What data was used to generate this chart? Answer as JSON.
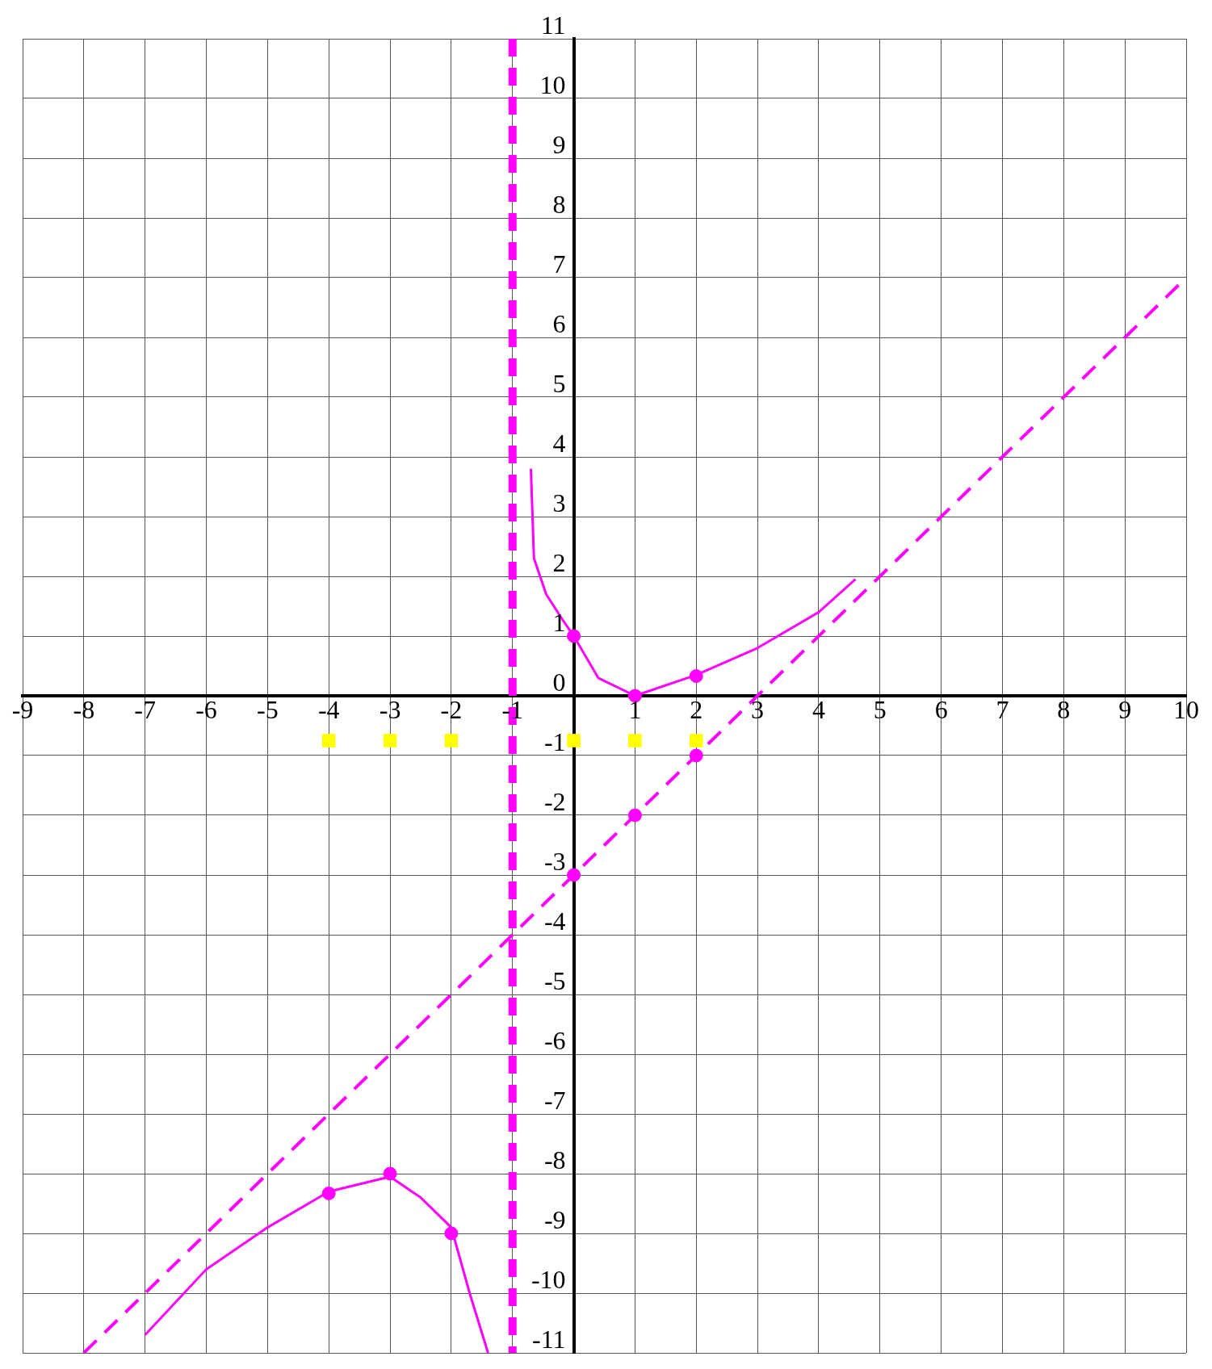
{
  "chart_data": {
    "type": "line",
    "xlim": [
      -9,
      10
    ],
    "ylim": [
      -11,
      11
    ],
    "xticks": [
      -9,
      -8,
      -7,
      -6,
      -5,
      -4,
      -3,
      -2,
      -1,
      {
        "value": 0,
        "label": null
      },
      1,
      2,
      3,
      4,
      5,
      6,
      7,
      8,
      9,
      10
    ],
    "yticks": [
      -11,
      -10,
      -9,
      -8,
      -7,
      -6,
      -5,
      -4,
      -3,
      -2,
      -1,
      0,
      1,
      2,
      3,
      4,
      5,
      6,
      7,
      8,
      9,
      10,
      11
    ],
    "grid": true,
    "legend": false,
    "series": [
      {
        "type": "line",
        "color": "#ff00ff",
        "x": [
          -0.7,
          -0.65,
          -0.45,
          -0.2,
          0,
          0.4,
          1,
          2,
          3,
          4,
          4.6
        ],
        "values": [
          3.8,
          2.3,
          1.7,
          1.3,
          1,
          0.3,
          0,
          0.35,
          0.8,
          1.4,
          1.95
        ],
        "marker": "none",
        "line_style": "solid"
      },
      {
        "type": "line",
        "color": "#ff00ff",
        "x": [
          -7,
          -6,
          -5,
          -4,
          -3,
          -2.5,
          -2,
          -1.7,
          -1.4
        ],
        "values": [
          -10.7,
          -9.6,
          -8.9,
          -8.3,
          -8.05,
          -8.4,
          -8.9,
          -10,
          -11
        ],
        "marker": "none",
        "line_style": "solid"
      },
      {
        "type": "line",
        "color": "#ff00ff",
        "x": [
          -8,
          10
        ],
        "values": [
          -11,
          7
        ],
        "marker": "none",
        "line_style": "dashed"
      },
      {
        "type": "scatter",
        "color": "#ff00ff",
        "x": [
          0,
          1,
          2,
          -2,
          -3,
          -4,
          0,
          1,
          2
        ],
        "values": [
          1,
          0,
          0.33,
          -9,
          -8,
          -8.33,
          -3,
          -2,
          -1
        ],
        "marker": "circle"
      },
      {
        "type": "scatter",
        "color": "#ffff00",
        "x": [
          -4,
          -3,
          -2,
          0,
          1,
          2
        ],
        "values": [
          -0.75,
          -0.75,
          -0.75,
          -0.75,
          -0.75,
          -0.75
        ],
        "marker": "square"
      }
    ],
    "ref_lines": [
      {
        "axis": "x",
        "value": -1,
        "color": "#ff00ff",
        "line_style": "dashed"
      }
    ]
  }
}
